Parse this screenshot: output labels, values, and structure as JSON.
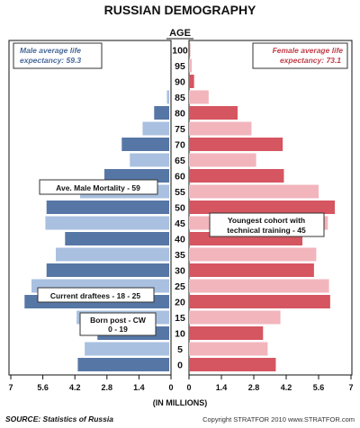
{
  "chart_data": {
    "type": "bar",
    "title": "RUSSIAN DEMOGRAPHY",
    "center_label": "AGE",
    "xlabel": "(IN MILLIONS)",
    "xlim": [
      0,
      7
    ],
    "left_ticks": [
      "7",
      "5.6",
      "4.2",
      "2.8",
      "1.4",
      "0"
    ],
    "right_ticks": [
      "0",
      "1.4",
      "2.8",
      "4.2",
      "5.6",
      "7"
    ],
    "tick_values": [
      0,
      1.4,
      2.8,
      4.2,
      5.6,
      7
    ],
    "categories": [
      "100",
      "95",
      "90",
      "85",
      "80",
      "75",
      "70",
      "65",
      "60",
      "55",
      "50",
      "45",
      "40",
      "35",
      "30",
      "25",
      "20",
      "15",
      "10",
      "5",
      "0"
    ],
    "series": [
      {
        "name": "Male",
        "values": [
          0.0,
          0.0,
          0.0,
          0.1,
          0.65,
          1.15,
          2.05,
          1.7,
          2.8,
          3.85,
          5.3,
          5.35,
          4.5,
          4.9,
          5.3,
          5.95,
          6.25,
          4.0,
          3.1,
          3.65,
          3.95
        ]
      },
      {
        "name": "Female",
        "values": [
          0.05,
          0.12,
          0.22,
          0.85,
          2.1,
          2.7,
          4.05,
          2.9,
          4.1,
          5.6,
          6.3,
          6.0,
          4.9,
          5.5,
          5.4,
          6.05,
          6.1,
          3.95,
          3.2,
          3.4,
          3.75
        ]
      }
    ],
    "legend": {
      "male": {
        "label": "Male average life expectancy: 59.3",
        "position": "top-left"
      },
      "female": {
        "label": "Female average life expectancy: 73.1",
        "position": "top-right"
      }
    },
    "annotations": [
      {
        "text": "Ave. Male Mortality - 59",
        "age": "55"
      },
      {
        "text": "Youngest cohort with technical training - 45",
        "age": "45"
      },
      {
        "text": "Current draftees - 18 - 25",
        "age": "25"
      },
      {
        "text": "Born post - CW 0 - 19",
        "age": "15"
      }
    ],
    "source": "SOURCE:  Statistics of Russia",
    "copyright": "Copyright STRATFOR 2010   www.STRATFOR.com",
    "colors": {
      "male_dark": "#5677a6",
      "male_light": "#a9c0e0",
      "female_dark": "#d55560",
      "female_light": "#f2b5bc",
      "male_text": "#4a6a9a",
      "female_text": "#c0404a"
    }
  },
  "legend_text": {
    "male_line1": "Male average life",
    "male_line2": "expectancy: 59.3",
    "female_line1": "Female average life",
    "female_line2": "expectancy: 73.1"
  },
  "annotation_text": {
    "mortality": "Ave. Male Mortality - 59",
    "technical_line1": "Youngest cohort with",
    "technical_line2": "technical training - 45",
    "draftees": "Current draftees - 18 - 25",
    "postcw_line1": "Born post - CW",
    "postcw_line2": "0 - 19"
  }
}
